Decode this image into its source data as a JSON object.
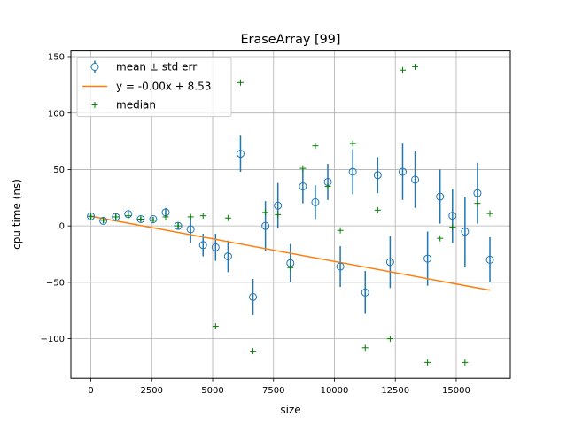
{
  "chart_data": {
    "type": "scatter",
    "title": "EraseArray [99]",
    "xlabel": "size",
    "ylabel": "cpu time (ns)",
    "xlim": [
      -820,
      17220
    ],
    "ylim": [
      -135,
      155
    ],
    "xticks": [
      0,
      2500,
      5000,
      7500,
      10000,
      12500,
      15000
    ],
    "xtick_labels": [
      "0",
      "2500",
      "5000",
      "7500",
      "10000",
      "12500",
      "15000"
    ],
    "yticks": [
      -100,
      -50,
      0,
      50,
      100,
      150
    ],
    "ytick_labels": [
      "−100",
      "−50",
      "0",
      "50",
      "100",
      "150"
    ],
    "grid": true,
    "legend_position": "top-left",
    "legend": [
      {
        "label": "mean ± std err",
        "kind": "errorbar"
      },
      {
        "label": "y = -0.00x + 8.53",
        "kind": "line"
      },
      {
        "label": "median",
        "kind": "plus"
      }
    ],
    "colors": {
      "mean": "#1f77b4",
      "fit": "#ff7f0e",
      "median": "#008000",
      "grid": "#b0b0b0"
    },
    "series": [
      {
        "name": "mean ± std err",
        "kind": "errorbar",
        "x": [
          0,
          512,
          1024,
          1536,
          2048,
          2560,
          3072,
          3584,
          4096,
          4608,
          5120,
          5632,
          6144,
          6656,
          7168,
          7680,
          8192,
          8704,
          9216,
          9728,
          10240,
          10752,
          11264,
          11776,
          12288,
          12800,
          13312,
          13824,
          14336,
          14848,
          15360,
          15872,
          16384
        ],
        "y": [
          8.5,
          4.5,
          8.0,
          10.5,
          6.0,
          6.0,
          12.0,
          0.0,
          -3.0,
          -17.0,
          -19.0,
          -27.0,
          64.0,
          -63.0,
          0.0,
          18.0,
          -33.0,
          35.0,
          21.0,
          39.0,
          -36.0,
          48.0,
          -59.0,
          45.0,
          -32.0,
          48.0,
          41.0,
          -29.0,
          26.0,
          9.0,
          -5.0,
          29.0,
          -30.0
        ],
        "err": [
          2,
          2,
          3,
          3,
          2,
          2,
          4,
          3,
          12,
          10,
          12,
          14,
          16,
          16,
          22,
          20,
          17,
          15,
          15,
          16,
          18,
          20,
          19,
          16,
          23,
          25,
          25,
          24,
          24,
          24,
          31,
          27,
          20
        ]
      },
      {
        "name": "y = -0.00x + 8.53",
        "kind": "line",
        "x": [
          0,
          16384
        ],
        "y": [
          8.53,
          -57.0
        ]
      },
      {
        "name": "median",
        "kind": "plus",
        "x": [
          0,
          512,
          1024,
          1536,
          2048,
          2560,
          3072,
          3584,
          4096,
          4608,
          5120,
          5632,
          6144,
          6656,
          7168,
          7680,
          8192,
          8704,
          9216,
          9728,
          10240,
          10752,
          11264,
          11776,
          12288,
          12800,
          13312,
          13824,
          14336,
          14848,
          15360,
          15872,
          16384
        ],
        "y": [
          8.5,
          5.0,
          8.0,
          9.0,
          6.0,
          5.0,
          8.0,
          0.0,
          8.0,
          9.0,
          -89.0,
          7.0,
          127.0,
          -111.0,
          12.0,
          10.0,
          -37.0,
          51.0,
          71.0,
          35.0,
          -4.0,
          73.0,
          -108.0,
          14.0,
          -100.0,
          138.0,
          141.0,
          -121.0,
          -11.0,
          -1.0,
          -121.0,
          20.0,
          11.0
        ]
      }
    ]
  }
}
